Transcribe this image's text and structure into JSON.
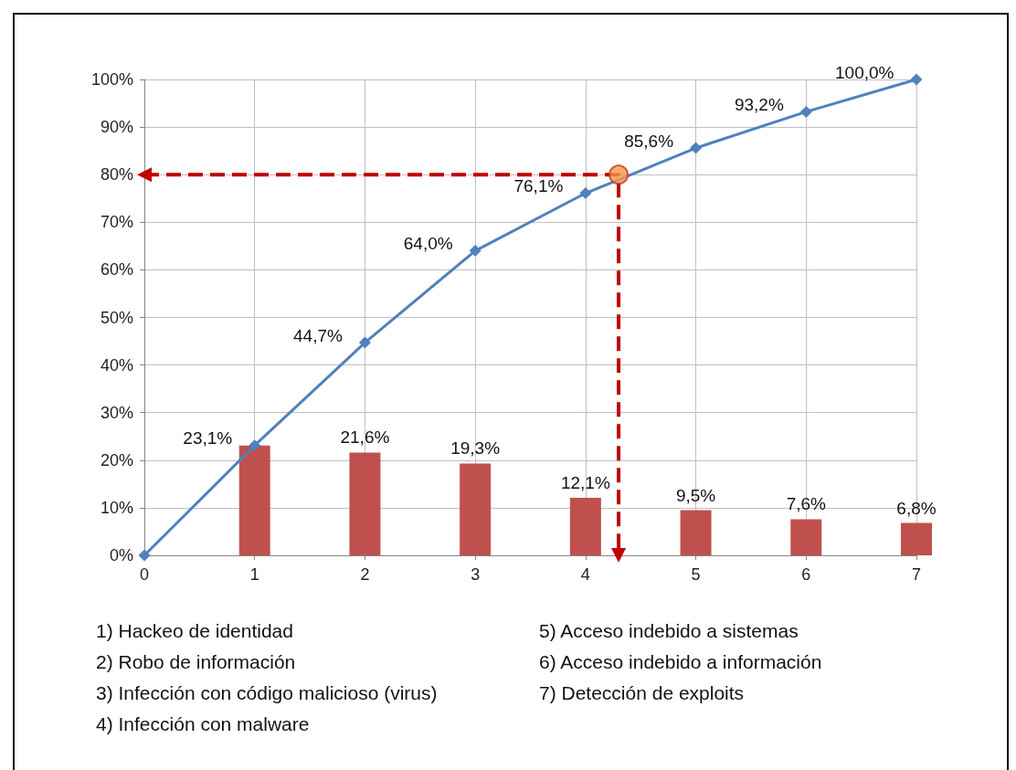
{
  "chart_data": {
    "type": "line",
    "xlim": [
      0,
      7
    ],
    "xticks": [
      0,
      1,
      2,
      3,
      4,
      5,
      6,
      7
    ],
    "ylim": [
      0,
      100
    ],
    "yticks": [
      {
        "value": 0,
        "label": "0%"
      },
      {
        "value": 10,
        "label": "10%"
      },
      {
        "value": 20,
        "label": "20%"
      },
      {
        "value": 30,
        "label": "30%"
      },
      {
        "value": 40,
        "label": "40%"
      },
      {
        "value": 50,
        "label": "50%"
      },
      {
        "value": 60,
        "label": "60%"
      },
      {
        "value": 70,
        "label": "70%"
      },
      {
        "value": 80,
        "label": "80%"
      },
      {
        "value": 90,
        "label": "90%"
      },
      {
        "value": 100,
        "label": "100%"
      }
    ],
    "grid": true,
    "series": [
      {
        "type": "bar",
        "color": "#c0504d",
        "x": [
          1,
          2,
          3,
          4,
          5,
          6,
          7
        ],
        "values": [
          23.1,
          21.6,
          19.3,
          12.1,
          9.5,
          7.6,
          6.8
        ],
        "value_labels": [
          null,
          "21,6%",
          "19,3%",
          "12,1%",
          "9,5%",
          "7,6%",
          "6,8%"
        ]
      },
      {
        "color": "#4f81bd",
        "marker": "diamond",
        "x": [
          0,
          1,
          2,
          3,
          4,
          5,
          6,
          7
        ],
        "values": [
          0,
          23.1,
          44.7,
          64.0,
          76.1,
          85.6,
          93.2,
          100.0
        ],
        "value_labels": [
          null,
          "23,1%",
          "44,7%",
          "64,0%",
          "76,1%",
          "85,6%",
          "93,2%",
          "100,0%"
        ]
      },
      {
        "color": "#c00000",
        "line_style": "dashed",
        "x": [
          0,
          4.3,
          4.3
        ],
        "values": [
          80,
          80,
          0
        ]
      },
      {
        "type": "scatter",
        "color": "#f79646",
        "marker": "circle",
        "x": [
          4.3
        ],
        "values": [
          80
        ]
      }
    ],
    "annotations": [
      "1) Hackeo de identidad",
      "2) Robo de información",
      "3) Infección con código malicioso (virus)",
      "4) Infección con malware",
      "5) Acceso indebido a sistemas",
      "6) Acceso indebido a información",
      "7) Detección de exploits"
    ]
  }
}
